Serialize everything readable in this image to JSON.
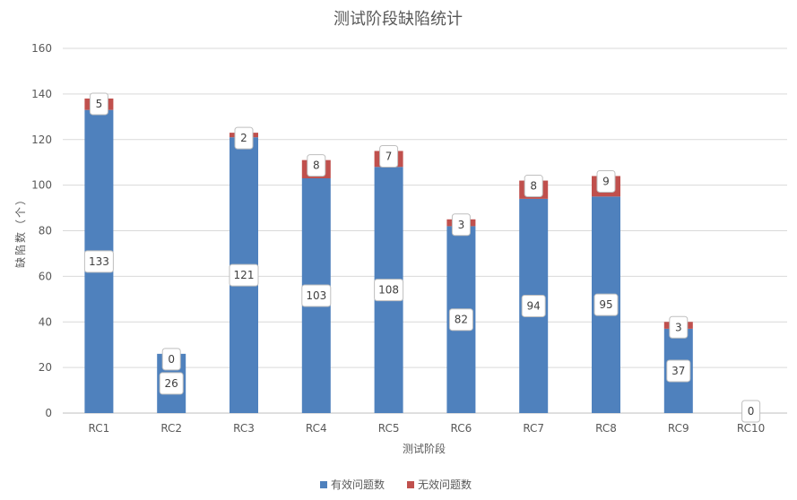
{
  "chart_data": {
    "type": "bar",
    "stacked": true,
    "title": "测试阶段缺陷统计",
    "xlabel": "测试阶段",
    "ylabel": "缺陷数（个）",
    "categories": [
      "RC1",
      "RC2",
      "RC3",
      "RC4",
      "RC5",
      "RC6",
      "RC7",
      "RC8",
      "RC9",
      "RC10"
    ],
    "series": [
      {
        "name": "有效问题数",
        "color": "#4F81BD",
        "values": [
          133,
          26,
          121,
          103,
          108,
          82,
          94,
          95,
          37,
          0
        ]
      },
      {
        "name": "无效问题数",
        "color": "#C0504D",
        "values": [
          5,
          0,
          2,
          8,
          7,
          3,
          8,
          9,
          3,
          0
        ]
      }
    ],
    "ylim": [
      0,
      160
    ],
    "yticks": [
      0,
      20,
      40,
      60,
      80,
      100,
      120,
      140,
      160
    ],
    "grid": true,
    "legend_position": "bottom"
  }
}
